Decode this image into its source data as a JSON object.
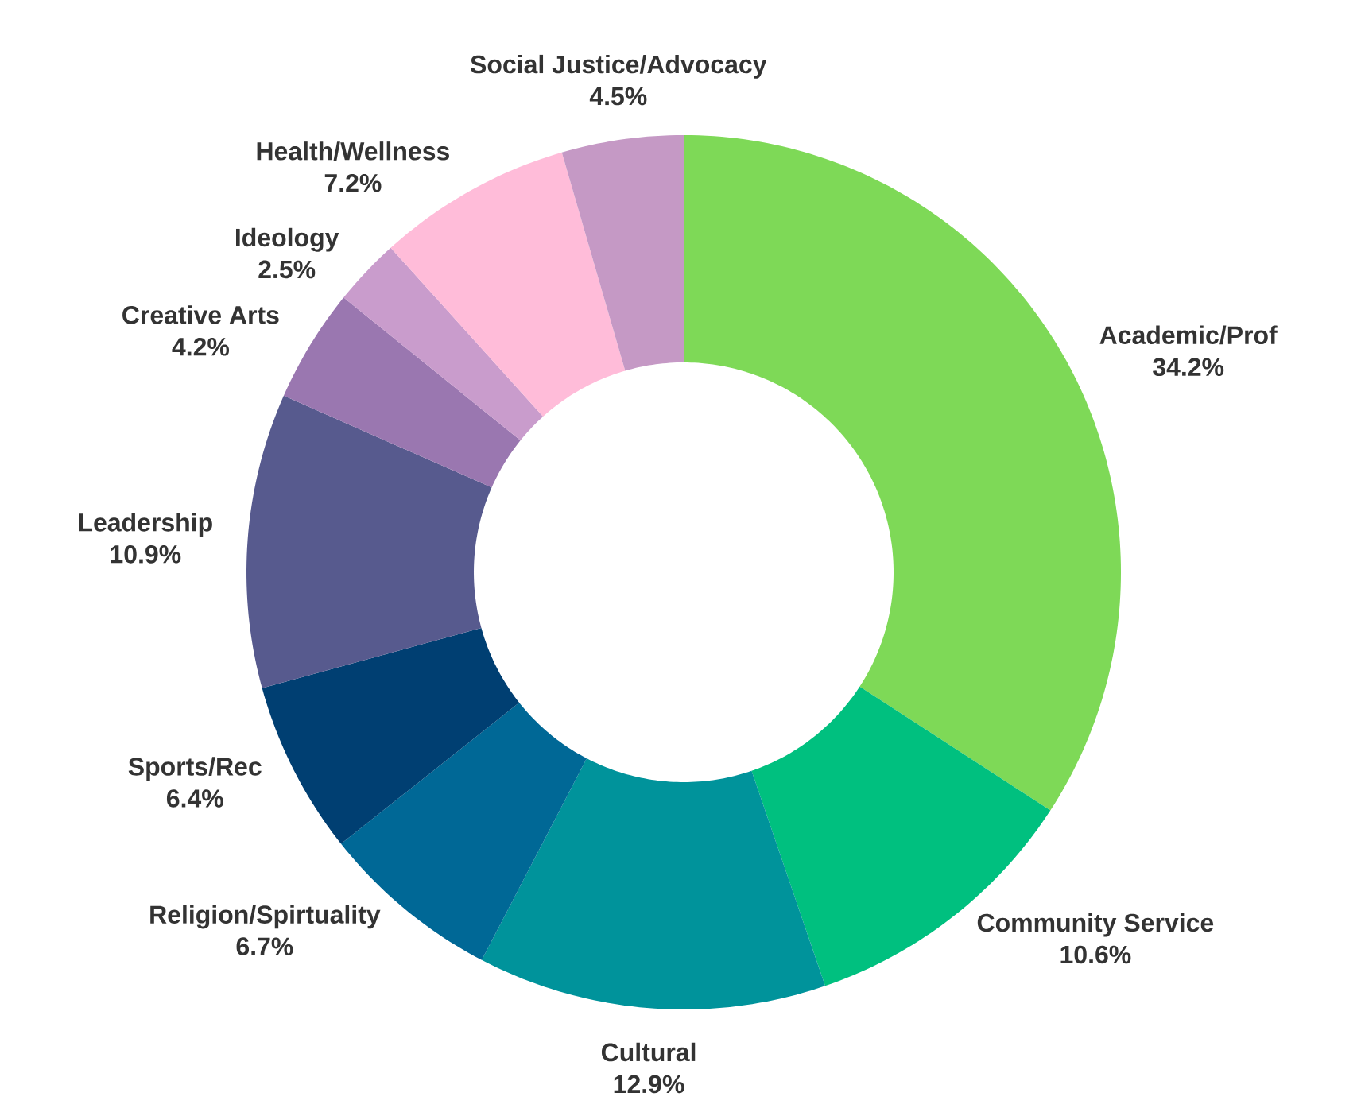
{
  "chart_data": {
    "type": "donut",
    "categories": [
      "Academic/Prof",
      "Community Service",
      "Cultural",
      "Religion/Spirtuality",
      "Sports/Rec",
      "Leadership",
      "Creative Arts",
      "Ideology",
      "Health/Wellness",
      "Social Justice/Advocacy"
    ],
    "values": [
      34.2,
      10.6,
      12.9,
      6.7,
      6.4,
      10.9,
      4.2,
      2.5,
      7.2,
      4.5
    ],
    "value_labels": [
      "34.2%",
      "10.6%",
      "12.9%",
      "6.7%",
      "6.4%",
      "10.9%",
      "4.2%",
      "2.5%",
      "7.2%",
      "4.5%"
    ],
    "colors": [
      "#7ed957",
      "#00c07f",
      "#00939b",
      "#006896",
      "#003f72",
      "#575a8e",
      "#9a77b0",
      "#c99ccc",
      "#ffbcd9",
      "#c599c5"
    ]
  }
}
